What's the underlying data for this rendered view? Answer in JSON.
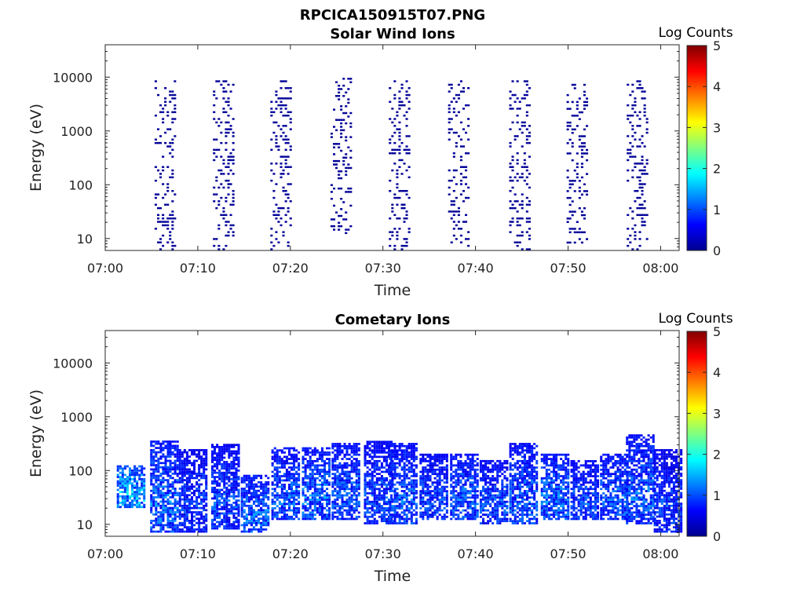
{
  "figure_title": "RPCICA150915T07.PNG",
  "colorbar": {
    "label": "Log Counts",
    "ticks": [
      "5",
      "4",
      "3",
      "2",
      "1",
      "0"
    ],
    "range": [
      0,
      5
    ],
    "colormap": "jet"
  },
  "chart_data": [
    {
      "type": "heatmap",
      "title": "Solar Wind Ions",
      "xlabel": "Time",
      "ylabel": "Energy (eV)",
      "y_scale": "log",
      "xlim": [
        "07:00",
        "08:02"
      ],
      "ylim": [
        6,
        40000
      ],
      "x_ticks": [
        "07:00",
        "07:10",
        "07:20",
        "07:30",
        "07:40",
        "07:50",
        "08:00"
      ],
      "y_ticks": [
        "10",
        "100",
        "1000",
        "10000"
      ],
      "background": "#ffffff",
      "bursts": [
        {
          "time_min": 6.5,
          "energy_range_ev": [
            6,
            10000
          ],
          "log_counts": 0
        },
        {
          "time_min": 12.8,
          "energy_range_ev": [
            6,
            8000
          ],
          "log_counts": 0
        },
        {
          "time_min": 19.0,
          "energy_range_ev": [
            6,
            8000
          ],
          "log_counts": 0
        },
        {
          "time_min": 25.5,
          "energy_range_ev": [
            12,
            9000
          ],
          "log_counts": 0
        },
        {
          "time_min": 31.8,
          "energy_range_ev": [
            6,
            9000
          ],
          "log_counts": 0
        },
        {
          "time_min": 38.2,
          "energy_range_ev": [
            6,
            9000
          ],
          "log_counts": 0
        },
        {
          "time_min": 44.8,
          "energy_range_ev": [
            6,
            9000
          ],
          "log_counts": 0
        },
        {
          "time_min": 51.0,
          "energy_range_ev": [
            8,
            9000
          ],
          "log_counts": 0
        },
        {
          "time_min": 57.5,
          "energy_range_ev": [
            6,
            9000
          ],
          "log_counts": 0
        }
      ]
    },
    {
      "type": "heatmap",
      "title": "Cometary Ions",
      "xlabel": "Time",
      "ylabel": "Energy (eV)",
      "y_scale": "log",
      "xlim": [
        "07:00",
        "08:02"
      ],
      "ylim": [
        6,
        40000
      ],
      "x_ticks": [
        "07:00",
        "07:10",
        "07:20",
        "07:30",
        "07:40",
        "07:50",
        "08:00"
      ],
      "y_ticks": [
        "10",
        "100",
        "1000",
        "10000"
      ],
      "background": "#ffffff",
      "bursts": [
        {
          "time_min": 2.8,
          "energy_range_ev": [
            20,
            120
          ],
          "log_counts": 1.8
        },
        {
          "time_min": 6.4,
          "energy_range_ev": [
            7,
            350
          ],
          "log_counts": 1.3
        },
        {
          "time_min": 9.5,
          "energy_range_ev": [
            7,
            250
          ],
          "log_counts": 1.0
        },
        {
          "time_min": 13.0,
          "energy_range_ev": [
            8,
            300
          ],
          "log_counts": 1.1
        },
        {
          "time_min": 16.2,
          "energy_range_ev": [
            7,
            80
          ],
          "log_counts": 1.3
        },
        {
          "time_min": 19.5,
          "energy_range_ev": [
            12,
            250
          ],
          "log_counts": 1.2
        },
        {
          "time_min": 22.8,
          "energy_range_ev": [
            12,
            250
          ],
          "log_counts": 1.3
        },
        {
          "time_min": 26.0,
          "energy_range_ev": [
            12,
            300
          ],
          "log_counts": 1.2
        },
        {
          "time_min": 29.5,
          "energy_range_ev": [
            10,
            350
          ],
          "log_counts": 1.1
        },
        {
          "time_min": 32.2,
          "energy_range_ev": [
            10,
            300
          ],
          "log_counts": 1.2
        },
        {
          "time_min": 35.5,
          "energy_range_ev": [
            12,
            200
          ],
          "log_counts": 1.1
        },
        {
          "time_min": 38.8,
          "energy_range_ev": [
            12,
            200
          ],
          "log_counts": 1.2
        },
        {
          "time_min": 42.0,
          "energy_range_ev": [
            10,
            150
          ],
          "log_counts": 1.1
        },
        {
          "time_min": 45.2,
          "energy_range_ev": [
            10,
            300
          ],
          "log_counts": 1.2
        },
        {
          "time_min": 48.6,
          "energy_range_ev": [
            12,
            200
          ],
          "log_counts": 1.3
        },
        {
          "time_min": 51.8,
          "energy_range_ev": [
            12,
            150
          ],
          "log_counts": 1.1
        },
        {
          "time_min": 55.0,
          "energy_range_ev": [
            12,
            200
          ],
          "log_counts": 1.2
        },
        {
          "time_min": 57.8,
          "energy_range_ev": [
            10,
            450
          ],
          "log_counts": 1.2
        },
        {
          "time_min": 60.8,
          "energy_range_ev": [
            7,
            250
          ],
          "log_counts": 1.0
        }
      ]
    }
  ]
}
